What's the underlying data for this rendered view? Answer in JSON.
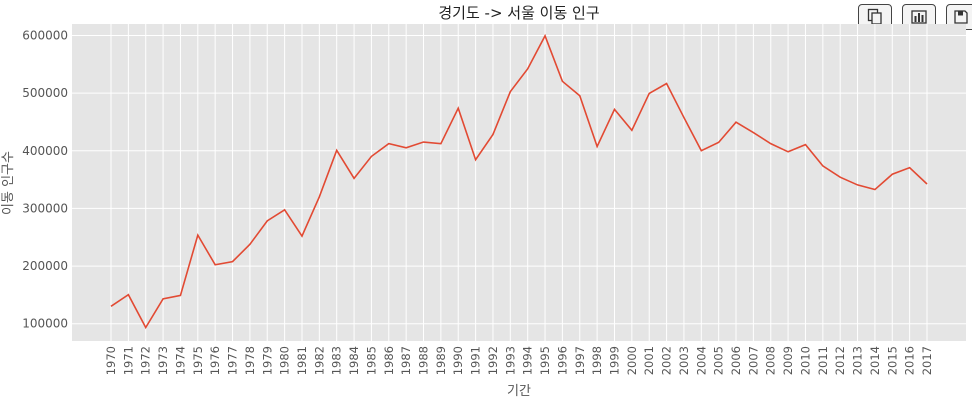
{
  "toolbar": {
    "icons": [
      "copy-icon",
      "bar-chart-icon",
      "save-icon"
    ]
  },
  "colors": {
    "line": "#e24a33",
    "plot_bg": "#e5e5e5",
    "grid": "#ffffff",
    "tick_text": "#555555"
  },
  "chart_data": {
    "type": "line",
    "title": "경기도 -> 서울 이동 인구",
    "xlabel": "기간",
    "ylabel": "이동 인구수",
    "ylim": [
      70000,
      620000
    ],
    "yticks": [
      100000,
      200000,
      300000,
      400000,
      500000,
      600000
    ],
    "ytick_labels": [
      "100000",
      "200000",
      "300000",
      "400000",
      "500000",
      "600000"
    ],
    "grid": true,
    "x": [
      "1970",
      "1971",
      "1972",
      "1973",
      "1974",
      "1975",
      "1976",
      "1977",
      "1978",
      "1979",
      "1980",
      "1981",
      "1982",
      "1983",
      "1984",
      "1985",
      "1986",
      "1987",
      "1988",
      "1989",
      "1990",
      "1991",
      "1992",
      "1993",
      "1994",
      "1995",
      "1996",
      "1997",
      "1998",
      "1999",
      "2000",
      "2001",
      "2002",
      "2003",
      "2004",
      "2005",
      "2006",
      "2007",
      "2008",
      "2009",
      "2010",
      "2011",
      "2012",
      "2013",
      "2014",
      "2015",
      "2016",
      "2017"
    ],
    "values": [
      130149,
      150313,
      93333,
      143234,
      149045,
      253705,
      202276,
      207722,
      237684,
      278411,
      297539,
      252073,
      320174,
      400875,
      352238,
      390265,
      412535,
      405220,
      415174,
      412379,
      473889,
      384488,
      428344,
      502584,
      542204,
      599411,
      520566,
      495454,
      407449,
      471841,
      435573,
      499575,
      516765,
      457656,
      400206,
      414621,
      449632,
      431637,
      412408,
      398282,
      410735,
      373771,
      354135,
      340801,
      332785,
      359337,
      370760,
      342433
    ]
  }
}
